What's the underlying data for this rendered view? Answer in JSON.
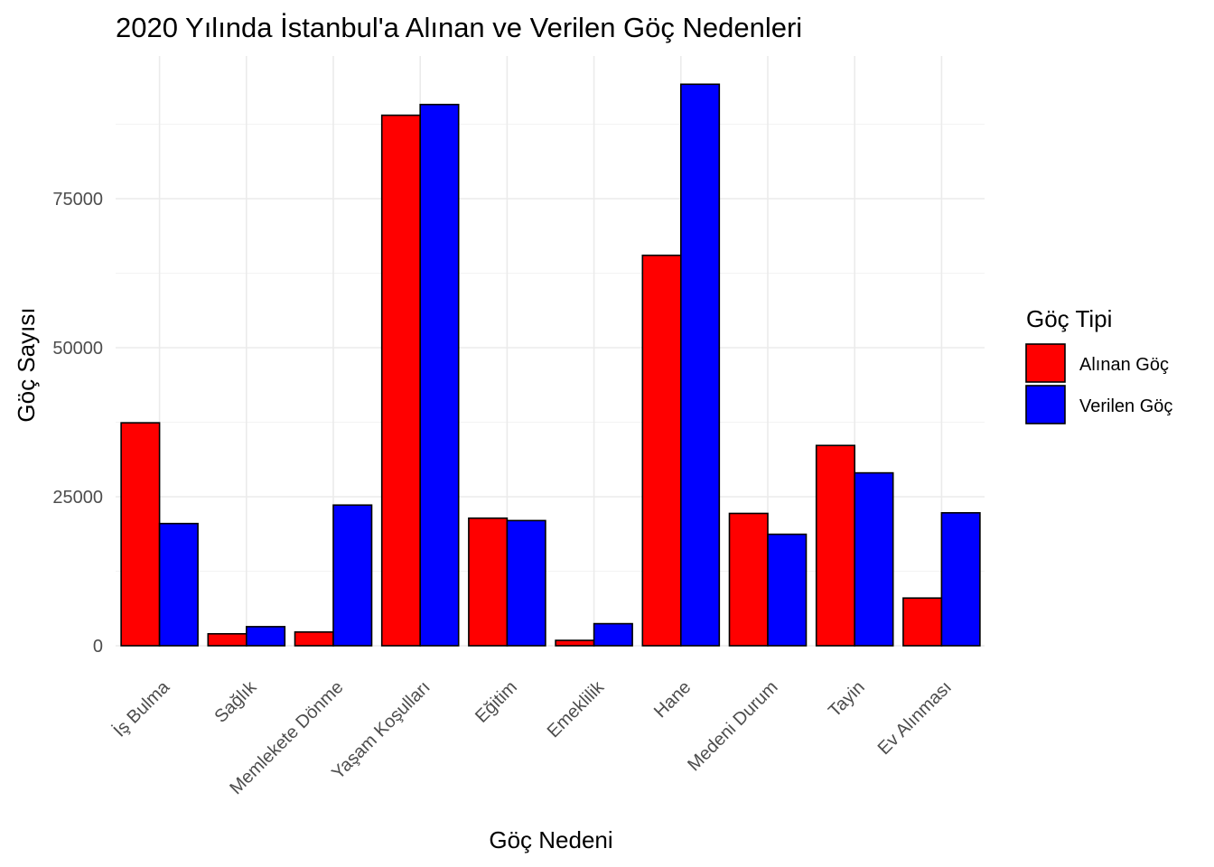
{
  "chart_data": {
    "type": "bar",
    "title": "2020 Yılında İstanbul'a Alınan ve Verilen Göç Nedenleri",
    "xlabel": "Göç Nedeni",
    "ylabel": "Göç Sayısı",
    "categories": [
      "İş Bulma",
      "Sağlık",
      "Memlekete Dönme",
      "Yaşam Koşulları",
      "Eğitim",
      "Emeklilik",
      "Hane",
      "Medeni Durum",
      "Tayin",
      "Ev Alınması"
    ],
    "series": [
      {
        "name": "Alınan Göç",
        "color": "#ff0000",
        "values": [
          37400,
          2000,
          2300,
          89000,
          21400,
          900,
          65500,
          22200,
          33600,
          8000
        ]
      },
      {
        "name": "Verilen Göç",
        "color": "#0000ff",
        "values": [
          20500,
          3200,
          23600,
          90800,
          21000,
          3700,
          94200,
          18700,
          29000,
          22300
        ]
      }
    ],
    "ylim": [
      0,
      100000
    ],
    "yticks": [
      0,
      25000,
      50000,
      75000
    ],
    "grid": true,
    "legend": {
      "title": "Göç Tipi",
      "position": "right"
    }
  }
}
